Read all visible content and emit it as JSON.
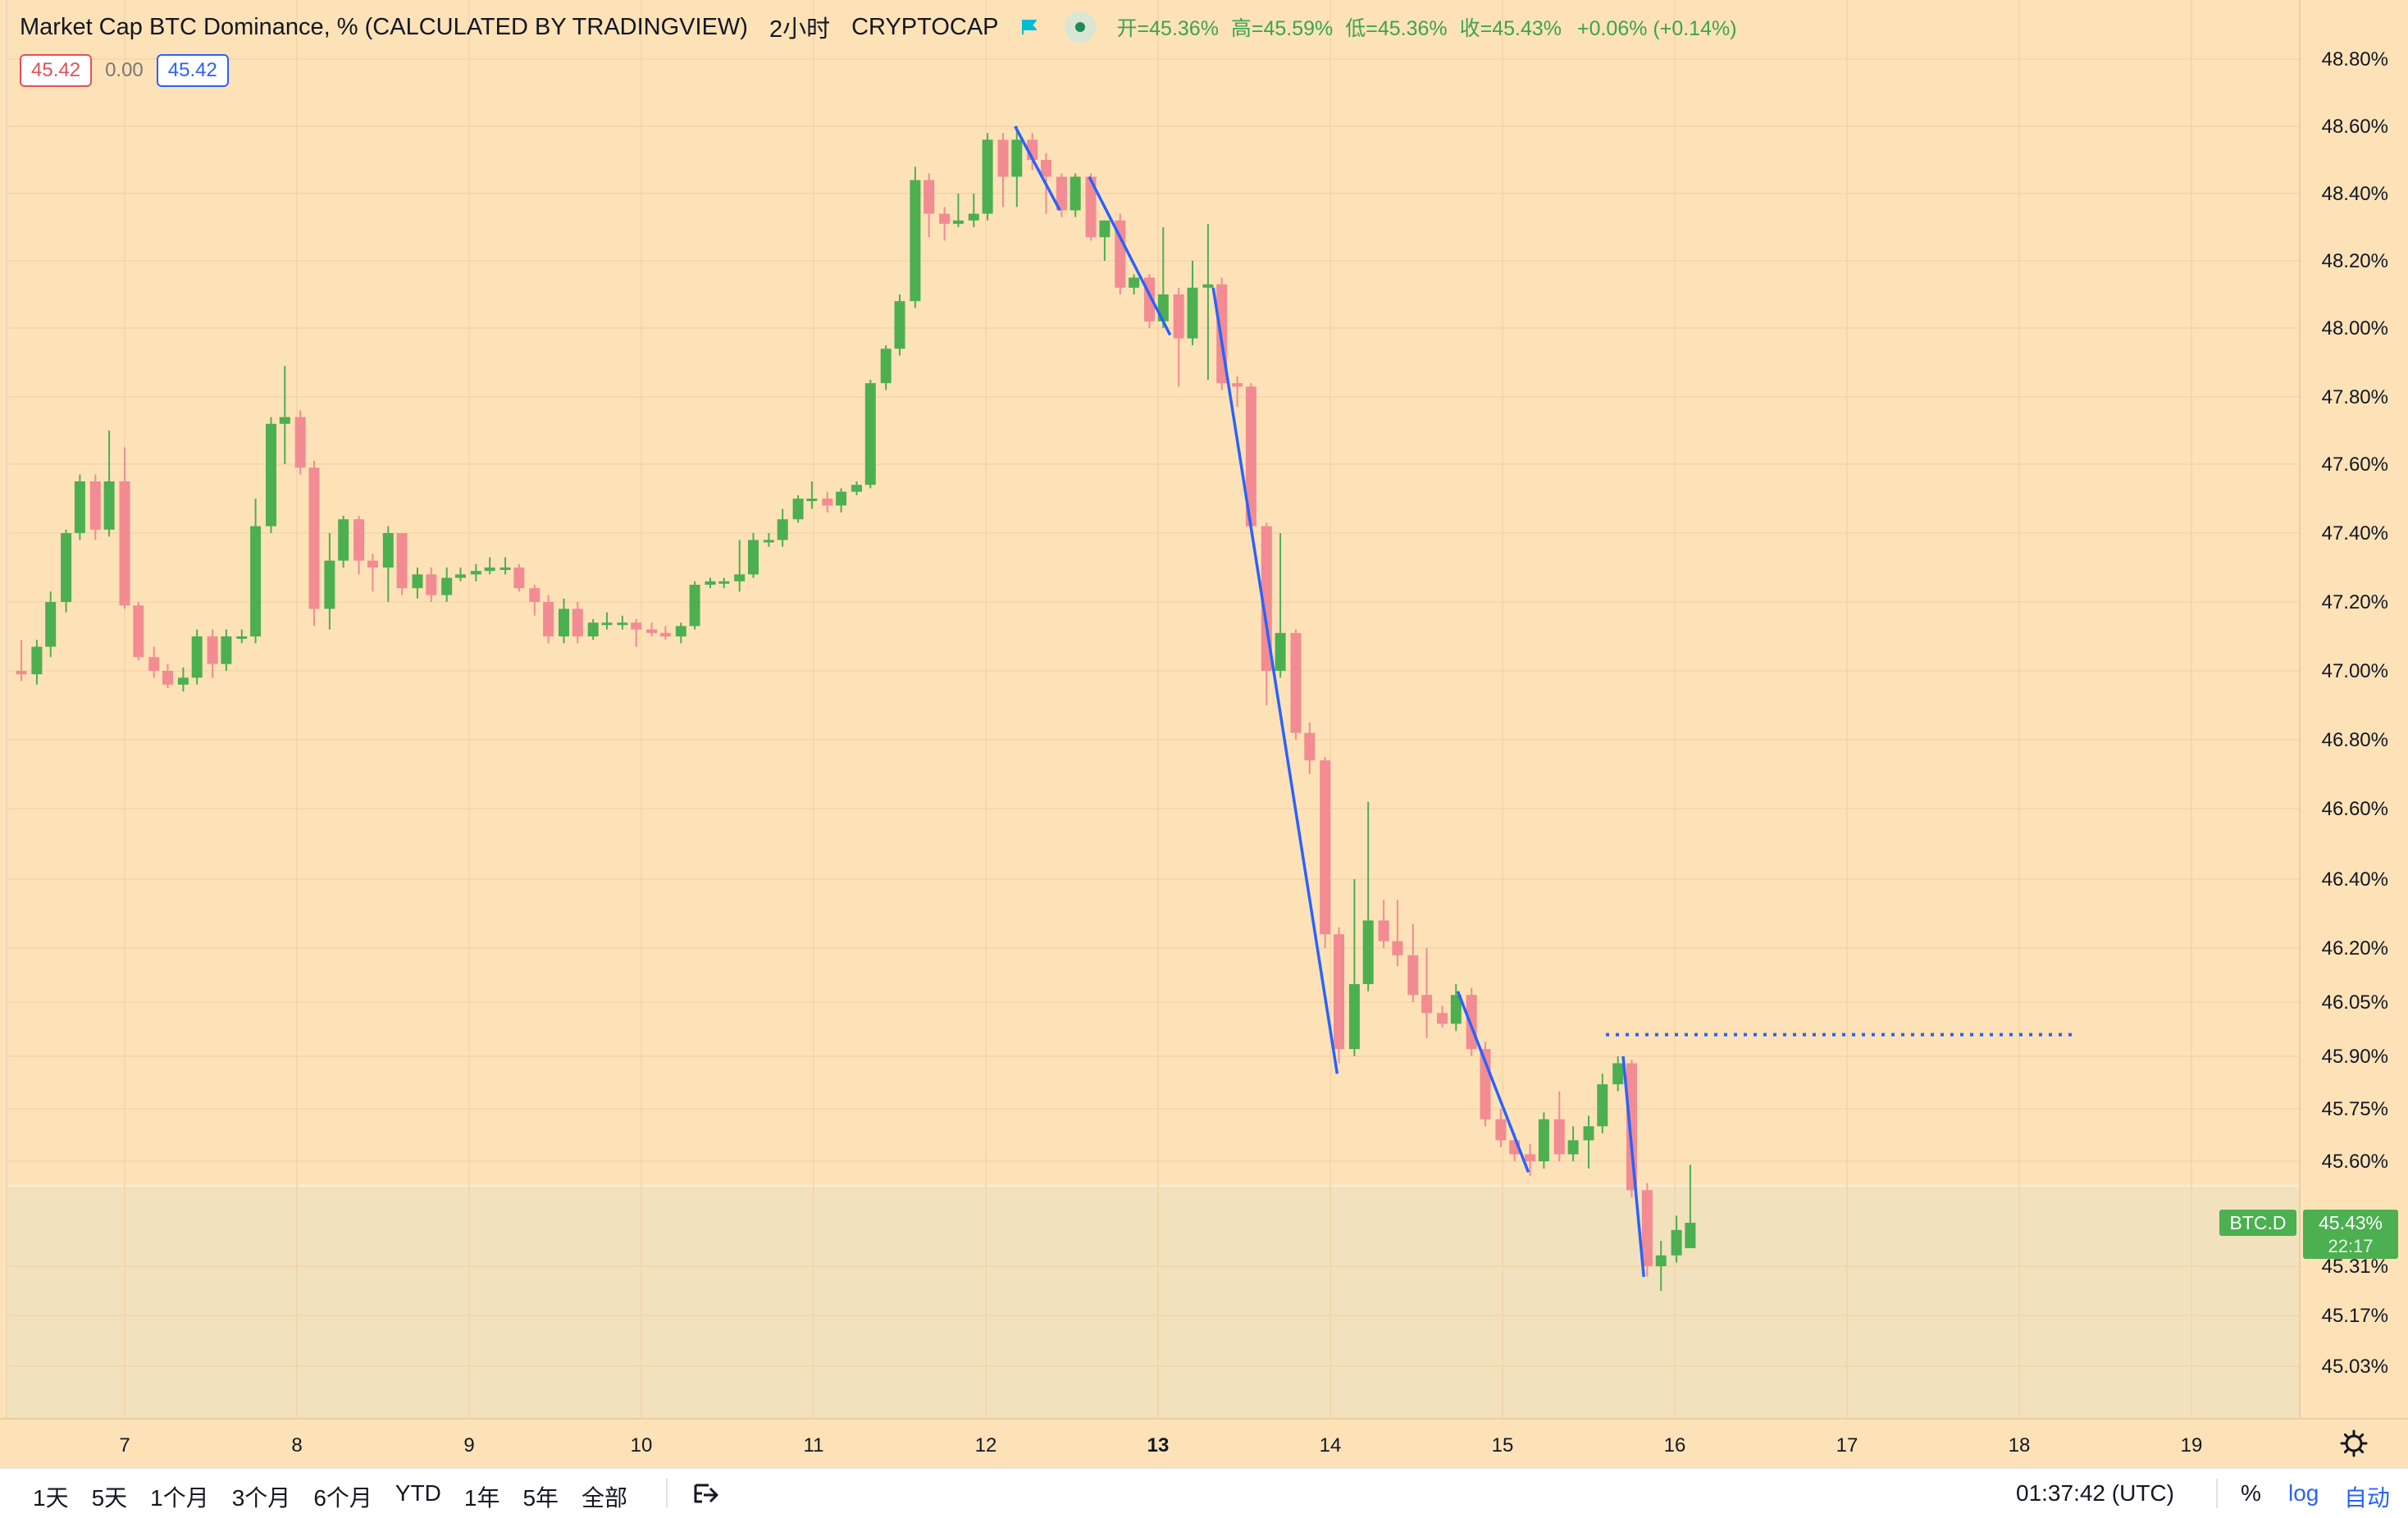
{
  "header": {
    "title": "Market Cap BTC Dominance, % (CALCULATED BY TRADINGVIEW)",
    "interval": "2小时",
    "exchange": "CRYPTOCAP",
    "open_label": "开=",
    "open": "45.36%",
    "high_label": "高=",
    "high": "45.59%",
    "low_label": "低=",
    "low": "45.36%",
    "close_label": "收=",
    "close": "45.43%",
    "change": "+0.06% (+0.14%)"
  },
  "values_row": {
    "left": "45.42",
    "mid": "0.00",
    "right": "45.42"
  },
  "price_tag": {
    "symbol": "BTC.D",
    "price": "45.43%",
    "countdown": "22:17"
  },
  "bottom_bar": {
    "ranges": [
      "1天",
      "5天",
      "1个月",
      "3个月",
      "6个月",
      "YTD",
      "1年",
      "5年",
      "全部"
    ],
    "time": "01:37:42 (UTC)",
    "percent": "%",
    "log": "log",
    "auto": "自动"
  },
  "colors": {
    "up": "#4caf50",
    "down": "#f28b92",
    "background": "#fde2b8",
    "drawing": "#2962ff"
  },
  "chart_data": {
    "type": "candlestick",
    "title": "Market Cap BTC Dominance, % (CALCULATED BY TRADINGVIEW)",
    "interval": "2h",
    "xlabel": "",
    "ylabel": "",
    "x_ticks": [
      {
        "day": 7,
        "label": "7"
      },
      {
        "day": 8,
        "label": "8"
      },
      {
        "day": 9,
        "label": "9"
      },
      {
        "day": 10,
        "label": "10"
      },
      {
        "day": 11,
        "label": "11"
      },
      {
        "day": 12,
        "label": "12"
      },
      {
        "day": 13,
        "label": "13",
        "bold": true
      },
      {
        "day": 14,
        "label": "14"
      },
      {
        "day": 15,
        "label": "15"
      },
      {
        "day": 16,
        "label": "16"
      },
      {
        "day": 17,
        "label": "17"
      },
      {
        "day": 18,
        "label": "18"
      },
      {
        "day": 19,
        "label": "19"
      }
    ],
    "y_ticks": [
      "48.80%",
      "48.60%",
      "48.40%",
      "48.20%",
      "48.00%",
      "47.80%",
      "47.60%",
      "47.40%",
      "47.20%",
      "47.00%",
      "46.80%",
      "46.60%",
      "46.40%",
      "46.20%",
      "46.05%",
      "45.90%",
      "45.75%",
      "45.60%",
      "45.31%",
      "45.17%",
      "45.03%"
    ],
    "x_range_days": [
      6.3,
      19.65
    ],
    "candles": [
      {
        "t": 6.4,
        "o": 47.0,
        "h": 47.09,
        "l": 46.97,
        "c": 46.99
      },
      {
        "t": 6.49,
        "o": 46.99,
        "h": 47.09,
        "l": 46.96,
        "c": 47.07
      },
      {
        "t": 6.57,
        "o": 47.07,
        "h": 47.23,
        "l": 47.04,
        "c": 47.2
      },
      {
        "t": 6.66,
        "o": 47.2,
        "h": 47.41,
        "l": 47.17,
        "c": 47.4
      },
      {
        "t": 6.74,
        "o": 47.4,
        "h": 47.57,
        "l": 47.38,
        "c": 47.55
      },
      {
        "t": 6.83,
        "o": 47.55,
        "h": 47.57,
        "l": 47.38,
        "c": 47.41
      },
      {
        "t": 6.91,
        "o": 47.41,
        "h": 47.7,
        "l": 47.39,
        "c": 47.55
      },
      {
        "t": 7.0,
        "o": 47.55,
        "h": 47.65,
        "l": 47.18,
        "c": 47.19
      },
      {
        "t": 7.08,
        "o": 47.19,
        "h": 47.2,
        "l": 47.03,
        "c": 47.04
      },
      {
        "t": 7.17,
        "o": 47.04,
        "h": 47.07,
        "l": 46.98,
        "c": 47.0
      },
      {
        "t": 7.25,
        "o": 47.0,
        "h": 47.02,
        "l": 46.95,
        "c": 46.96
      },
      {
        "t": 7.34,
        "o": 46.96,
        "h": 47.01,
        "l": 46.94,
        "c": 46.98
      },
      {
        "t": 7.42,
        "o": 46.98,
        "h": 47.12,
        "l": 46.96,
        "c": 47.1
      },
      {
        "t": 7.51,
        "o": 47.1,
        "h": 47.12,
        "l": 46.98,
        "c": 47.02
      },
      {
        "t": 7.59,
        "o": 47.02,
        "h": 47.12,
        "l": 47.0,
        "c": 47.1
      },
      {
        "t": 7.68,
        "o": 47.1,
        "h": 47.12,
        "l": 47.08,
        "c": 47.1
      },
      {
        "t": 7.76,
        "o": 47.1,
        "h": 47.5,
        "l": 47.08,
        "c": 47.42
      },
      {
        "t": 7.85,
        "o": 47.42,
        "h": 47.74,
        "l": 47.4,
        "c": 47.72
      },
      {
        "t": 7.93,
        "o": 47.72,
        "h": 47.89,
        "l": 47.6,
        "c": 47.74
      },
      {
        "t": 8.02,
        "o": 47.74,
        "h": 47.76,
        "l": 47.57,
        "c": 47.59
      },
      {
        "t": 8.1,
        "o": 47.59,
        "h": 47.61,
        "l": 47.13,
        "c": 47.18
      },
      {
        "t": 8.19,
        "o": 47.18,
        "h": 47.4,
        "l": 47.12,
        "c": 47.32
      },
      {
        "t": 8.27,
        "o": 47.32,
        "h": 47.45,
        "l": 47.3,
        "c": 47.44
      },
      {
        "t": 8.36,
        "o": 47.44,
        "h": 47.45,
        "l": 47.28,
        "c": 47.32
      },
      {
        "t": 8.44,
        "o": 47.32,
        "h": 47.34,
        "l": 47.23,
        "c": 47.3
      },
      {
        "t": 8.53,
        "o": 47.3,
        "h": 47.42,
        "l": 47.2,
        "c": 47.4
      },
      {
        "t": 8.61,
        "o": 47.4,
        "h": 47.4,
        "l": 47.22,
        "c": 47.24
      },
      {
        "t": 8.7,
        "o": 47.24,
        "h": 47.3,
        "l": 47.21,
        "c": 47.28
      },
      {
        "t": 8.78,
        "o": 47.28,
        "h": 47.3,
        "l": 47.2,
        "c": 47.22
      },
      {
        "t": 8.87,
        "o": 47.22,
        "h": 47.3,
        "l": 47.2,
        "c": 47.27
      },
      {
        "t": 8.95,
        "o": 47.27,
        "h": 47.3,
        "l": 47.26,
        "c": 47.28
      },
      {
        "t": 9.04,
        "o": 47.28,
        "h": 47.31,
        "l": 47.26,
        "c": 47.29
      },
      {
        "t": 9.12,
        "o": 47.29,
        "h": 47.33,
        "l": 47.28,
        "c": 47.3
      },
      {
        "t": 9.21,
        "o": 47.3,
        "h": 47.33,
        "l": 47.28,
        "c": 47.3
      },
      {
        "t": 9.29,
        "o": 47.3,
        "h": 47.31,
        "l": 47.23,
        "c": 47.24
      },
      {
        "t": 9.38,
        "o": 47.24,
        "h": 47.25,
        "l": 47.16,
        "c": 47.2
      },
      {
        "t": 9.46,
        "o": 47.2,
        "h": 47.22,
        "l": 47.08,
        "c": 47.1
      },
      {
        "t": 9.55,
        "o": 47.1,
        "h": 47.21,
        "l": 47.08,
        "c": 47.18
      },
      {
        "t": 9.63,
        "o": 47.18,
        "h": 47.2,
        "l": 47.08,
        "c": 47.1
      },
      {
        "t": 9.72,
        "o": 47.1,
        "h": 47.15,
        "l": 47.09,
        "c": 47.14
      },
      {
        "t": 9.8,
        "o": 47.14,
        "h": 47.17,
        "l": 47.12,
        "c": 47.14
      },
      {
        "t": 9.89,
        "o": 47.14,
        "h": 47.16,
        "l": 47.12,
        "c": 47.14
      },
      {
        "t": 9.97,
        "o": 47.14,
        "h": 47.15,
        "l": 47.07,
        "c": 47.12
      },
      {
        "t": 10.06,
        "o": 47.12,
        "h": 47.14,
        "l": 47.1,
        "c": 47.11
      },
      {
        "t": 10.14,
        "o": 47.11,
        "h": 47.13,
        "l": 47.09,
        "c": 47.1
      },
      {
        "t": 10.23,
        "o": 47.1,
        "h": 47.14,
        "l": 47.08,
        "c": 47.13
      },
      {
        "t": 10.31,
        "o": 47.13,
        "h": 47.26,
        "l": 47.12,
        "c": 47.25
      },
      {
        "t": 10.4,
        "o": 47.25,
        "h": 47.27,
        "l": 47.24,
        "c": 47.26
      },
      {
        "t": 10.48,
        "o": 47.26,
        "h": 47.27,
        "l": 47.24,
        "c": 47.26
      },
      {
        "t": 10.57,
        "o": 47.26,
        "h": 47.38,
        "l": 47.23,
        "c": 47.28
      },
      {
        "t": 10.65,
        "o": 47.28,
        "h": 47.4,
        "l": 47.27,
        "c": 47.38
      },
      {
        "t": 10.74,
        "o": 47.38,
        "h": 47.4,
        "l": 47.36,
        "c": 47.38
      },
      {
        "t": 10.82,
        "o": 47.38,
        "h": 47.47,
        "l": 47.36,
        "c": 47.44
      },
      {
        "t": 10.91,
        "o": 47.44,
        "h": 47.51,
        "l": 47.43,
        "c": 47.5
      },
      {
        "t": 10.99,
        "o": 47.5,
        "h": 47.55,
        "l": 47.47,
        "c": 47.5
      },
      {
        "t": 11.08,
        "o": 47.5,
        "h": 47.52,
        "l": 47.46,
        "c": 47.48
      },
      {
        "t": 11.16,
        "o": 47.48,
        "h": 47.53,
        "l": 47.46,
        "c": 47.52
      },
      {
        "t": 11.25,
        "o": 47.52,
        "h": 47.55,
        "l": 47.51,
        "c": 47.54
      },
      {
        "t": 11.33,
        "o": 47.54,
        "h": 47.85,
        "l": 47.53,
        "c": 47.84
      },
      {
        "t": 11.42,
        "o": 47.84,
        "h": 47.95,
        "l": 47.82,
        "c": 47.94
      },
      {
        "t": 11.5,
        "o": 47.94,
        "h": 48.1,
        "l": 47.92,
        "c": 48.08
      },
      {
        "t": 11.59,
        "o": 48.08,
        "h": 48.48,
        "l": 48.06,
        "c": 48.44
      },
      {
        "t": 11.67,
        "o": 48.44,
        "h": 48.46,
        "l": 48.27,
        "c": 48.34
      },
      {
        "t": 11.76,
        "o": 48.34,
        "h": 48.36,
        "l": 48.26,
        "c": 48.31
      },
      {
        "t": 11.84,
        "o": 48.31,
        "h": 48.4,
        "l": 48.3,
        "c": 48.32
      },
      {
        "t": 11.93,
        "o": 48.32,
        "h": 48.4,
        "l": 48.3,
        "c": 48.34
      },
      {
        "t": 12.01,
        "o": 48.34,
        "h": 48.58,
        "l": 48.32,
        "c": 48.56
      },
      {
        "t": 12.1,
        "o": 48.56,
        "h": 48.58,
        "l": 48.36,
        "c": 48.45
      },
      {
        "t": 12.18,
        "o": 48.45,
        "h": 48.6,
        "l": 48.36,
        "c": 48.56
      },
      {
        "t": 12.27,
        "o": 48.56,
        "h": 48.58,
        "l": 48.47,
        "c": 48.5
      },
      {
        "t": 12.35,
        "o": 48.5,
        "h": 48.52,
        "l": 48.34,
        "c": 48.45
      },
      {
        "t": 12.44,
        "o": 48.45,
        "h": 48.46,
        "l": 48.33,
        "c": 48.35
      },
      {
        "t": 12.52,
        "o": 48.35,
        "h": 48.46,
        "l": 48.33,
        "c": 48.45
      },
      {
        "t": 12.61,
        "o": 48.45,
        "h": 48.46,
        "l": 48.26,
        "c": 48.27
      },
      {
        "t": 12.69,
        "o": 48.27,
        "h": 48.32,
        "l": 48.2,
        "c": 48.32
      },
      {
        "t": 12.78,
        "o": 48.32,
        "h": 48.34,
        "l": 48.1,
        "c": 48.12
      },
      {
        "t": 12.86,
        "o": 48.12,
        "h": 48.16,
        "l": 48.1,
        "c": 48.15
      },
      {
        "t": 12.95,
        "o": 48.15,
        "h": 48.16,
        "l": 48.0,
        "c": 48.02
      },
      {
        "t": 13.03,
        "o": 48.02,
        "h": 48.3,
        "l": 48.0,
        "c": 48.1
      },
      {
        "t": 13.12,
        "o": 48.1,
        "h": 48.12,
        "l": 47.83,
        "c": 47.97
      },
      {
        "t": 13.2,
        "o": 47.97,
        "h": 48.2,
        "l": 47.95,
        "c": 48.12
      },
      {
        "t": 13.29,
        "o": 48.12,
        "h": 48.31,
        "l": 47.85,
        "c": 48.13
      },
      {
        "t": 13.37,
        "o": 48.13,
        "h": 48.15,
        "l": 47.82,
        "c": 47.84
      },
      {
        "t": 13.46,
        "o": 47.84,
        "h": 47.86,
        "l": 47.77,
        "c": 47.83
      },
      {
        "t": 13.54,
        "o": 47.83,
        "h": 47.84,
        "l": 47.4,
        "c": 47.42
      },
      {
        "t": 13.63,
        "o": 47.42,
        "h": 47.43,
        "l": 46.9,
        "c": 47.0
      },
      {
        "t": 13.71,
        "o": 47.0,
        "h": 47.4,
        "l": 46.98,
        "c": 47.11
      },
      {
        "t": 13.8,
        "o": 47.11,
        "h": 47.12,
        "l": 46.8,
        "c": 46.82
      },
      {
        "t": 13.88,
        "o": 46.82,
        "h": 46.85,
        "l": 46.7,
        "c": 46.74
      },
      {
        "t": 13.97,
        "o": 46.74,
        "h": 46.75,
        "l": 46.2,
        "c": 46.24
      },
      {
        "t": 14.05,
        "o": 46.24,
        "h": 46.26,
        "l": 45.88,
        "c": 45.92
      },
      {
        "t": 14.14,
        "o": 45.92,
        "h": 46.4,
        "l": 45.9,
        "c": 46.1
      },
      {
        "t": 14.22,
        "o": 46.1,
        "h": 46.62,
        "l": 46.08,
        "c": 46.28
      },
      {
        "t": 14.31,
        "o": 46.28,
        "h": 46.34,
        "l": 46.2,
        "c": 46.22
      },
      {
        "t": 14.39,
        "o": 46.22,
        "h": 46.34,
        "l": 46.15,
        "c": 46.18
      },
      {
        "t": 14.48,
        "o": 46.18,
        "h": 46.27,
        "l": 46.05,
        "c": 46.07
      },
      {
        "t": 14.56,
        "o": 46.07,
        "h": 46.2,
        "l": 45.95,
        "c": 46.02
      },
      {
        "t": 14.65,
        "o": 46.02,
        "h": 46.04,
        "l": 45.98,
        "c": 45.99
      },
      {
        "t": 14.73,
        "o": 45.99,
        "h": 46.1,
        "l": 45.97,
        "c": 46.07
      },
      {
        "t": 14.82,
        "o": 46.07,
        "h": 46.09,
        "l": 45.9,
        "c": 45.92
      },
      {
        "t": 14.9,
        "o": 45.92,
        "h": 45.94,
        "l": 45.7,
        "c": 45.72
      },
      {
        "t": 14.99,
        "o": 45.72,
        "h": 45.75,
        "l": 45.64,
        "c": 45.66
      },
      {
        "t": 15.07,
        "o": 45.66,
        "h": 45.68,
        "l": 45.6,
        "c": 45.62
      },
      {
        "t": 15.16,
        "o": 45.62,
        "h": 45.65,
        "l": 45.56,
        "c": 45.6
      },
      {
        "t": 15.24,
        "o": 45.6,
        "h": 45.74,
        "l": 45.58,
        "c": 45.72
      },
      {
        "t": 15.33,
        "o": 45.72,
        "h": 45.8,
        "l": 45.6,
        "c": 45.62
      },
      {
        "t": 15.41,
        "o": 45.62,
        "h": 45.7,
        "l": 45.6,
        "c": 45.66
      },
      {
        "t": 15.5,
        "o": 45.66,
        "h": 45.73,
        "l": 45.58,
        "c": 45.7
      },
      {
        "t": 15.58,
        "o": 45.7,
        "h": 45.85,
        "l": 45.68,
        "c": 45.82
      },
      {
        "t": 15.67,
        "o": 45.82,
        "h": 45.9,
        "l": 45.8,
        "c": 45.88
      },
      {
        "t": 15.75,
        "o": 45.88,
        "h": 45.89,
        "l": 45.5,
        "c": 45.52
      },
      {
        "t": 15.84,
        "o": 45.52,
        "h": 45.54,
        "l": 45.28,
        "c": 45.31
      },
      {
        "t": 15.92,
        "o": 45.31,
        "h": 45.38,
        "l": 45.24,
        "c": 45.34
      },
      {
        "t": 16.01,
        "o": 45.34,
        "h": 45.45,
        "l": 45.32,
        "c": 45.41
      },
      {
        "t": 16.09,
        "o": 45.36,
        "h": 45.59,
        "l": 45.36,
        "c": 45.43
      }
    ],
    "drawings": [
      {
        "type": "trendline",
        "from": {
          "t": 12.17,
          "v": 48.6
        },
        "to": {
          "t": 12.43,
          "v": 48.35
        }
      },
      {
        "type": "trendline",
        "from": {
          "t": 12.6,
          "v": 48.45
        },
        "to": {
          "t": 13.07,
          "v": 47.98
        }
      },
      {
        "type": "trendline",
        "from": {
          "t": 13.32,
          "v": 48.12
        },
        "to": {
          "t": 14.04,
          "v": 45.85
        }
      },
      {
        "type": "trendline",
        "from": {
          "t": 14.74,
          "v": 46.08
        },
        "to": {
          "t": 15.15,
          "v": 45.57
        }
      },
      {
        "type": "trendline",
        "from": {
          "t": 15.7,
          "v": 45.9
        },
        "to": {
          "t": 15.82,
          "v": 45.28
        }
      },
      {
        "type": "horizontal_dotted",
        "from": {
          "t": 15.6,
          "v": 45.96
        },
        "to": {
          "t": 18.33,
          "v": 45.96
        }
      }
    ]
  }
}
